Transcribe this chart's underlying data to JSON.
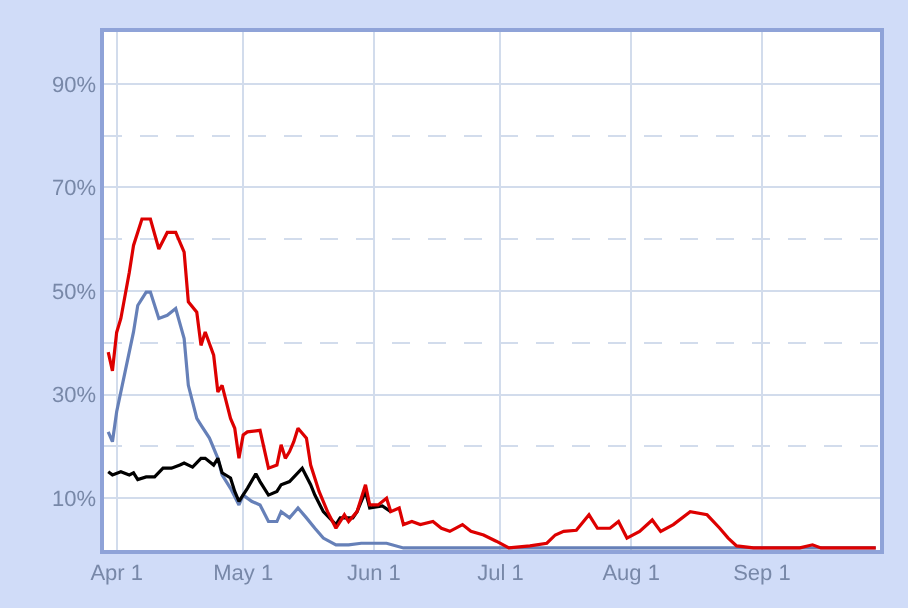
{
  "chart_data": {
    "type": "line",
    "xlim": [
      "--03-29",
      "--09-29"
    ],
    "xticks": [
      {
        "value": "--04-01",
        "label": "Apr 1"
      },
      {
        "value": "--05-01",
        "label": "May 1"
      },
      {
        "value": "--06-01",
        "label": "Jun 1"
      },
      {
        "value": "--07-01",
        "label": "Jul 1"
      },
      {
        "value": "--08-01",
        "label": "Aug 1"
      },
      {
        "value": "--09-01",
        "label": "Sep 1"
      }
    ],
    "ylim": [
      0,
      100
    ],
    "yticks": [
      {
        "value": 10,
        "label": "10%"
      },
      {
        "value": 20,
        "label": null
      },
      {
        "value": 30,
        "label": "30%"
      },
      {
        "value": 40,
        "label": null
      },
      {
        "value": 50,
        "label": "50%"
      },
      {
        "value": 60,
        "label": null
      },
      {
        "value": 70,
        "label": "70%"
      },
      {
        "value": 80,
        "label": null
      },
      {
        "value": 90,
        "label": "90%"
      }
    ],
    "grid": true,
    "marker": "none",
    "line_style": "solid",
    "series": [
      {
        "color": "#6680b8",
        "x": [
          "--03-30",
          "--03-31",
          "--04-01",
          "--04-03",
          "--04-05",
          "--04-06",
          "--04-08",
          "--04-09",
          "--04-11",
          "--04-13",
          "--04-15",
          "--04-17",
          "--04-18",
          "--04-20",
          "--04-21",
          "--04-23",
          "--04-25",
          "--04-26",
          "--04-28",
          "--04-30",
          "--05-01",
          "--05-03",
          "--05-05",
          "--05-07",
          "--05-09",
          "--05-10",
          "--05-12",
          "--05-14",
          "--05-16",
          "--05-18",
          "--05-20",
          "--05-23",
          "--05-26",
          "--05-29",
          "--06-04",
          "--06-08",
          "--09-28"
        ],
        "values": [
          22.8,
          20.9,
          26.7,
          34.4,
          42.1,
          47.2,
          49.8,
          49.8,
          44.7,
          45.3,
          46.6,
          40.8,
          31.8,
          25.4,
          24.1,
          21.6,
          17.7,
          14.5,
          11.9,
          8.7,
          10.6,
          9.4,
          8.7,
          5.5,
          5.5,
          7.4,
          6.2,
          8.1,
          6.2,
          4.2,
          2.3,
          1.0,
          1.0,
          1.3,
          1.3,
          0.4,
          0.4
        ]
      },
      {
        "color": "#000000",
        "x": [
          "--03-30",
          "--03-31",
          "--04-02",
          "--04-04",
          "--04-05",
          "--04-06",
          "--04-08",
          "--04-10",
          "--04-12",
          "--04-14",
          "--04-16",
          "--04-17",
          "--04-19",
          "--04-21",
          "--04-22",
          "--04-24",
          "--04-25",
          "--04-26",
          "--04-28",
          "--04-29",
          "--04-30",
          "--05-02",
          "--05-04",
          "--05-05",
          "--05-07",
          "--05-09",
          "--05-10",
          "--05-12",
          "--05-15",
          "--05-17",
          "--05-18",
          "--05-20",
          "--05-23",
          "--05-24",
          "--05-27",
          "--05-28",
          "--05-30",
          "--05-31",
          "--06-03",
          "--06-05"
        ],
        "values": [
          15.1,
          14.5,
          15.1,
          14.5,
          14.9,
          13.6,
          14.1,
          14.1,
          15.8,
          15.8,
          16.4,
          16.8,
          16.0,
          17.7,
          17.7,
          16.4,
          17.7,
          14.9,
          13.9,
          11.3,
          9.4,
          11.9,
          14.7,
          13.2,
          10.6,
          11.3,
          12.6,
          13.2,
          15.8,
          12.6,
          10.6,
          7.4,
          4.9,
          6.2,
          6.2,
          7.4,
          11.3,
          8.1,
          8.5,
          7.4
        ]
      },
      {
        "color": "#dd0000",
        "x": [
          "--03-30",
          "--03-31",
          "--04-01",
          "--04-02",
          "--04-04",
          "--04-05",
          "--04-07",
          "--04-09",
          "--04-11",
          "--04-13",
          "--04-15",
          "--04-17",
          "--04-18",
          "--04-20",
          "--04-21",
          "--04-22",
          "--04-24",
          "--04-25",
          "--04-26",
          "--04-28",
          "--04-29",
          "--04-30",
          "--05-01",
          "--05-02",
          "--05-05",
          "--05-07",
          "--05-09",
          "--05-10",
          "--05-11",
          "--05-12",
          "--05-13",
          "--05-14",
          "--05-16",
          "--05-17",
          "--05-19",
          "--05-21",
          "--05-23",
          "--05-25",
          "--05-26",
          "--05-28",
          "--05-30",
          "--05-31",
          "--06-02",
          "--06-04",
          "--06-05",
          "--06-07",
          "--06-08",
          "--06-10",
          "--06-12",
          "--06-15",
          "--06-17",
          "--06-19",
          "--06-22",
          "--06-24",
          "--06-27",
          "--06-30",
          "--07-03",
          "--07-08",
          "--07-12",
          "--07-14",
          "--07-16",
          "--07-19",
          "--07-22",
          "--07-24",
          "--07-27",
          "--07-29",
          "--07-31",
          "--08-03",
          "--08-06",
          "--08-08",
          "--08-11",
          "--08-15",
          "--08-19",
          "--08-22",
          "--08-24",
          "--08-26",
          "--08-30",
          "--09-10",
          "--09-13",
          "--09-15",
          "--09-28"
        ],
        "values": [
          38.2,
          34.6,
          42.0,
          44.7,
          53.6,
          58.8,
          63.9,
          63.9,
          58.1,
          61.3,
          61.3,
          57.5,
          47.9,
          45.9,
          39.5,
          42.1,
          37.6,
          30.5,
          31.8,
          25.4,
          23.5,
          17.7,
          22.2,
          22.8,
          23.1,
          15.8,
          16.4,
          20.3,
          17.7,
          19.0,
          20.9,
          23.5,
          21.6,
          16.4,
          11.3,
          7.4,
          4.2,
          6.8,
          5.5,
          7.4,
          12.6,
          8.7,
          8.7,
          10.0,
          7.4,
          8.1,
          4.9,
          5.5,
          4.9,
          5.5,
          4.2,
          3.6,
          4.9,
          3.6,
          2.9,
          1.7,
          0.4,
          0.8,
          1.3,
          2.9,
          3.6,
          3.8,
          6.8,
          4.2,
          4.2,
          5.5,
          2.3,
          3.6,
          5.8,
          3.6,
          4.9,
          7.4,
          6.8,
          4.2,
          2.3,
          0.8,
          0.4,
          0.4,
          1.0,
          0.4,
          0.4
        ]
      }
    ]
  }
}
